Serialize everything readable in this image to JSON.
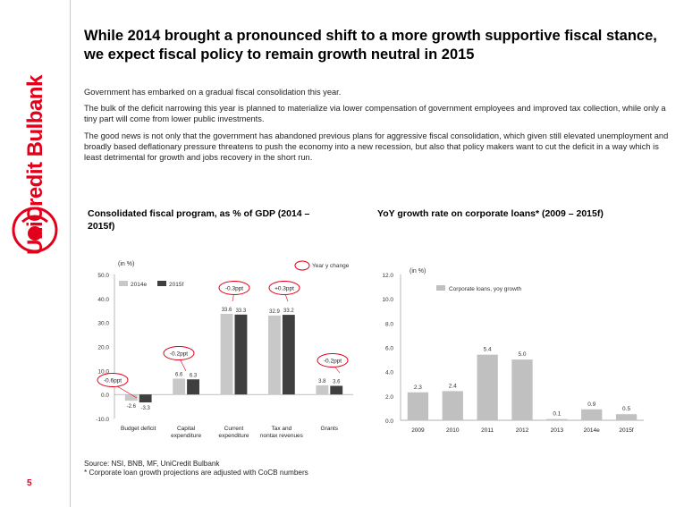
{
  "brand": {
    "name": "UniCredit Bulbank"
  },
  "page": {
    "number": "5"
  },
  "title": "While 2014 brought a pronounced shift to a more growth supportive fiscal stance, we expect fiscal policy to remain growth neutral in 2015",
  "paragraphs": [
    "Government has embarked on a gradual fiscal consolidation this year.",
    "The bulk of the deficit narrowing this year is planned to materialize via lower compensation of government employees and improved tax collection, while only a tiny part will come from lower public investments.",
    "The good news is not only that the government has abandoned previous plans for aggressive fiscal consolidation, which given still elevated unemployment and broadly based deflationary pressure threatens to push the economy into a new recession, but also that policy makers want to cut the deficit in a way which is least detrimental for growth and jobs recovery in the short run."
  ],
  "colors": {
    "brand_red": "#e2001a",
    "bar_light": "#c8c8c8",
    "bar_dark": "#3f3f3f",
    "bar_grey": "#c0c0c0"
  },
  "chart_data": [
    {
      "type": "bar",
      "title": "Consolidated fiscal program, as % of GDP (2014 – 2015f)",
      "unit_label": "(in %)",
      "categories": [
        "Budget deficit",
        "Capital expenditure",
        "Current expenditure",
        "Tax and nontax revenues",
        "Grants"
      ],
      "series": [
        {
          "name": "2014e",
          "values": [
            -2.6,
            6.6,
            33.6,
            32.9,
            3.8
          ],
          "labels": [
            "-2.6",
            "6.6",
            "33.6",
            "32.9",
            "3.8"
          ]
        },
        {
          "name": "2015f",
          "values": [
            -3.3,
            6.3,
            33.3,
            33.2,
            3.6
          ],
          "labels": [
            "-3.3",
            "6.3",
            "33.3",
            "33.2",
            "3.6"
          ]
        }
      ],
      "yticks": [
        "50.0",
        "40.0",
        "30.0",
        "20.0",
        "10.0",
        "0.0",
        "-10.0"
      ],
      "ylim": [
        -10,
        50
      ],
      "legend_extra": "Year y change",
      "annotations": [
        "-0.6ppt",
        "-0.2ppt",
        "-0.3ppt",
        "+0.3ppt",
        "-0.2ppt"
      ]
    },
    {
      "type": "bar",
      "title": "YoY growth rate on corporate loans* (2009 – 2015f)",
      "unit_label": "(in %)",
      "legend": "Corporate loans, yoy growth",
      "categories": [
        "2009",
        "2010",
        "2011",
        "2012",
        "2013",
        "2014e",
        "2015f"
      ],
      "values": [
        2.3,
        2.4,
        5.4,
        5.0,
        0.1,
        0.9,
        0.5
      ],
      "labels": [
        "2.3",
        "2.4",
        "5.4",
        "5.0",
        "0.1",
        "0.9",
        "0.5"
      ],
      "yticks": [
        "12.0",
        "10.0",
        "8.0",
        "6.0",
        "4.0",
        "2.0",
        "0.0"
      ],
      "ylim": [
        0,
        12
      ]
    }
  ],
  "source": {
    "line1": "Source: NSI, BNB, MF, UniCredit Bulbank",
    "line2": "* Corporate loan growth projections are adjusted with CoCB numbers"
  }
}
